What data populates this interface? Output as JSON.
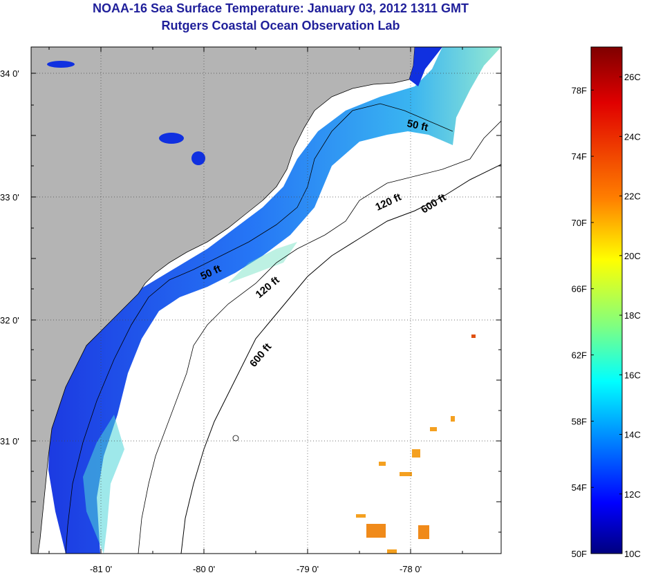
{
  "title": {
    "line1": "NOAA-16 Sea Surface Temperature:  January 03, 2012 1311 GMT",
    "line2": "Rutgers Coastal Ocean Observation Lab"
  },
  "map": {
    "lat_ticks": [
      "34 0'",
      "33 0'",
      "32 0'",
      "31 0'"
    ],
    "lon_ticks": [
      "-81 0'",
      "-80 0'",
      "-79 0'",
      "-78 0'"
    ],
    "contour_labels": [
      "50 ft",
      "50 ft",
      "120 ft",
      "120 ft",
      "600 ft",
      "600 ft"
    ]
  },
  "colorbar": {
    "fahrenheit_labels": [
      "78F",
      "74F",
      "70F",
      "66F",
      "62F",
      "58F",
      "54F",
      "50F"
    ],
    "celsius_labels": [
      "26C",
      "24C",
      "22C",
      "20C",
      "18C",
      "16C",
      "14C",
      "12C",
      "10C"
    ],
    "colors": [
      "#7f0000",
      "#ff0000",
      "#ff8000",
      "#ffff00",
      "#80ff80",
      "#00ffff",
      "#0080ff",
      "#0000ff",
      "#00007f"
    ]
  },
  "colors": {
    "land": "#b4b4b4",
    "ocean_empty": "#ffffff",
    "title": "#1f1f9a"
  }
}
